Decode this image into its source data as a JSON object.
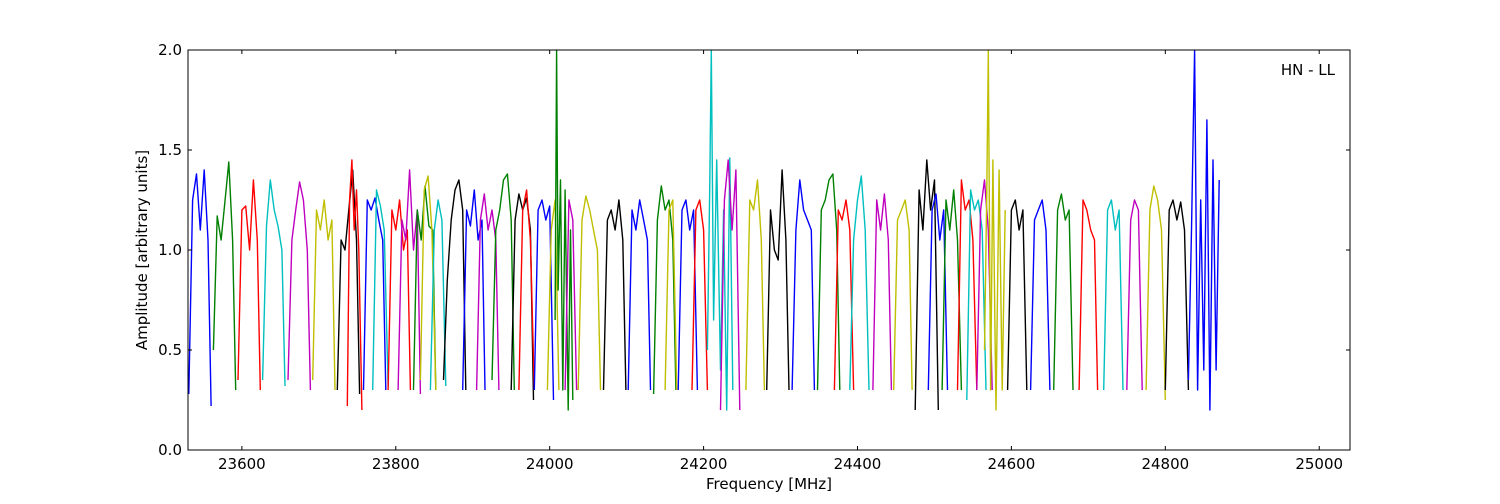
{
  "chart_data": {
    "type": "line",
    "title": "",
    "annotation": "HN - LL",
    "xlabel": "Frequency [MHz]",
    "ylabel": "Amplitude [arbitrary units]",
    "xlim": [
      23530,
      25040
    ],
    "ylim": [
      0.0,
      2.0
    ],
    "xticks": [
      23600,
      23800,
      24000,
      24200,
      24400,
      24600,
      24800,
      25000
    ],
    "xtick_labels": [
      "23600",
      "23800",
      "24000",
      "24200",
      "24400",
      "24600",
      "24800",
      "25000"
    ],
    "yticks": [
      0.0,
      0.5,
      1.0,
      1.5,
      2.0
    ],
    "ytick_labels": [
      "0.0",
      "0.5",
      "1.0",
      "1.5",
      "2.0"
    ],
    "grid": false,
    "color_cycle": [
      "#0000ff",
      "#008000",
      "#ff0000",
      "#00bfbf",
      "#bf00bf",
      "#bfbf00",
      "#000000"
    ],
    "series": [
      {
        "color": "#0000ff",
        "x": [
          23531,
          23536,
          23541,
          23546,
          23551,
          23556,
          23560
        ],
        "y": [
          0.28,
          1.25,
          1.38,
          1.1,
          1.4,
          1.05,
          0.22
        ]
      },
      {
        "color": "#008000",
        "x": [
          23563,
          23568,
          23573,
          23578,
          23583,
          23588,
          23592
        ],
        "y": [
          0.5,
          1.17,
          1.05,
          1.24,
          1.44,
          1.05,
          0.3
        ]
      },
      {
        "color": "#ff0000",
        "x": [
          23595,
          23600,
          23605,
          23610,
          23615,
          23620,
          23624
        ],
        "y": [
          0.35,
          1.2,
          1.22,
          1.0,
          1.35,
          1.05,
          0.3
        ]
      },
      {
        "color": "#00bfbf",
        "x": [
          23627,
          23632,
          23637,
          23642,
          23647,
          23652,
          23656
        ],
        "y": [
          0.35,
          1.12,
          1.35,
          1.2,
          1.12,
          1.0,
          0.32
        ]
      },
      {
        "color": "#bf00bf",
        "x": [
          23660,
          23665,
          23670,
          23675,
          23680,
          23685,
          23689
        ],
        "y": [
          0.35,
          1.05,
          1.2,
          1.34,
          1.25,
          1.0,
          0.3
        ]
      },
      {
        "color": "#bfbf00",
        "x": [
          23692,
          23697,
          23702,
          23707,
          23712,
          23717,
          23721
        ],
        "y": [
          0.35,
          1.2,
          1.1,
          1.25,
          1.05,
          1.15,
          0.3
        ]
      },
      {
        "color": "#000000",
        "x": [
          23724,
          23729,
          23734,
          23739,
          23744,
          23749,
          23753
        ],
        "y": [
          0.3,
          1.05,
          1.0,
          1.2,
          1.4,
          1.05,
          0.28
        ]
      },
      {
        "color": "#ff0000",
        "x": [
          23737,
          23740,
          23743,
          23746,
          23749,
          23752,
          23756
        ],
        "y": [
          0.22,
          1.25,
          1.45,
          1.1,
          1.3,
          1.0,
          0.2
        ]
      },
      {
        "color": "#0000ff",
        "x": [
          23758,
          23763,
          23768,
          23773,
          23778,
          23783,
          23787
        ],
        "y": [
          0.3,
          1.25,
          1.2,
          1.26,
          1.15,
          1.05,
          0.3
        ]
      },
      {
        "color": "#00bfbf",
        "x": [
          23770,
          23775,
          23780,
          23785,
          23790
        ],
        "y": [
          0.3,
          1.3,
          1.22,
          1.1,
          0.32
        ]
      },
      {
        "color": "#ff0000",
        "x": [
          23790,
          23795,
          23800,
          23805,
          23810,
          23815,
          23819
        ],
        "y": [
          0.3,
          1.2,
          1.1,
          1.25,
          1.0,
          1.1,
          0.3
        ]
      },
      {
        "color": "#bf00bf",
        "x": [
          23803,
          23808,
          23813,
          23818,
          23823,
          23828,
          23832
        ],
        "y": [
          0.3,
          1.15,
          1.05,
          1.4,
          1.0,
          1.2,
          0.28
        ]
      },
      {
        "color": "#008000",
        "x": [
          23823,
          23828,
          23833,
          23838,
          23843,
          23848,
          23852
        ],
        "y": [
          0.3,
          1.2,
          1.05,
          1.32,
          1.12,
          1.1,
          0.3
        ]
      },
      {
        "color": "#bfbf00",
        "x": [
          23832,
          23837,
          23842,
          23847,
          23852
        ],
        "y": [
          0.35,
          1.3,
          1.37,
          1.1,
          0.3
        ]
      },
      {
        "color": "#00bfbf",
        "x": [
          23845,
          23850,
          23855,
          23860,
          23865
        ],
        "y": [
          0.3,
          1.1,
          1.25,
          1.15,
          0.32
        ]
      },
      {
        "color": "#000000",
        "x": [
          23862,
          23867,
          23872,
          23877,
          23882,
          23887,
          23891
        ],
        "y": [
          0.35,
          0.85,
          1.15,
          1.3,
          1.35,
          1.2,
          0.3
        ]
      },
      {
        "color": "#0000ff",
        "x": [
          23887,
          23892,
          23897,
          23902,
          23907,
          23912,
          23916
        ],
        "y": [
          0.3,
          1.2,
          1.12,
          1.3,
          1.05,
          1.15,
          0.3
        ]
      },
      {
        "color": "#bf00bf",
        "x": [
          23905,
          23910,
          23915,
          23920,
          23925,
          23930,
          23934
        ],
        "y": [
          0.3,
          1.15,
          1.28,
          1.1,
          1.2,
          1.05,
          0.3
        ]
      },
      {
        "color": "#008000",
        "x": [
          23925,
          23930,
          23935,
          23940,
          23945,
          23950,
          23954
        ],
        "y": [
          0.35,
          1.1,
          1.2,
          1.35,
          1.38,
          1.15,
          0.3
        ]
      },
      {
        "color": "#000000",
        "x": [
          23950,
          23955,
          23960,
          23965,
          23970,
          23975,
          23979
        ],
        "y": [
          0.3,
          1.15,
          1.28,
          1.2,
          1.26,
          1.1,
          0.25
        ]
      },
      {
        "color": "#ff0000",
        "x": [
          23960,
          23965,
          23970,
          23975,
          23980
        ],
        "y": [
          0.3,
          1.2,
          1.3,
          1.05,
          0.3
        ]
      },
      {
        "color": "#0000ff",
        "x": [
          23980,
          23985,
          23990,
          23995,
          24000,
          24005
        ],
        "y": [
          0.3,
          1.2,
          1.25,
          1.15,
          1.22,
          0.25
        ]
      },
      {
        "color": "#bfbf00",
        "x": [
          23997,
          24002,
          24007,
          24012
        ],
        "y": [
          0.3,
          1.1,
          1.25,
          0.3
        ]
      },
      {
        "color": "#008000",
        "x": [
          24007,
          24009,
          24011,
          24014,
          24017,
          24020,
          24024,
          24027,
          24030
        ],
        "y": [
          0.65,
          2.0,
          0.8,
          1.35,
          0.3,
          1.3,
          0.2,
          1.1,
          0.25
        ]
      },
      {
        "color": "#bf00bf",
        "x": [
          24020,
          24025,
          24030,
          24035
        ],
        "y": [
          0.3,
          1.25,
          1.15,
          0.3
        ]
      },
      {
        "color": "#bfbf00",
        "x": [
          24037,
          24042,
          24047,
          24052,
          24057,
          24062,
          24066
        ],
        "y": [
          0.3,
          1.15,
          1.27,
          1.2,
          1.1,
          1.0,
          0.3
        ]
      },
      {
        "color": "#000000",
        "x": [
          24070,
          24075,
          24080,
          24085,
          24090,
          24095,
          24099
        ],
        "y": [
          0.3,
          1.15,
          1.2,
          1.1,
          1.25,
          1.05,
          0.3
        ]
      },
      {
        "color": "#0000ff",
        "x": [
          24102,
          24107,
          24112,
          24117,
          24122,
          24127,
          24131
        ],
        "y": [
          0.3,
          1.2,
          1.1,
          1.25,
          1.15,
          1.05,
          0.3
        ]
      },
      {
        "color": "#008000",
        "x": [
          24135,
          24140,
          24145,
          24150,
          24155,
          24160,
          24164
        ],
        "y": [
          0.28,
          1.15,
          1.32,
          1.2,
          1.25,
          1.05,
          0.3
        ]
      },
      {
        "color": "#bfbf00",
        "x": [
          24150,
          24155,
          24160,
          24165
        ],
        "y": [
          0.3,
          1.2,
          1.25,
          0.3
        ]
      },
      {
        "color": "#0000ff",
        "x": [
          24167,
          24172,
          24177,
          24182,
          24187,
          24192
        ],
        "y": [
          0.3,
          1.2,
          1.25,
          1.1,
          1.2,
          0.3
        ]
      },
      {
        "color": "#ff0000",
        "x": [
          24185,
          24190,
          24195,
          24200,
          24205
        ],
        "y": [
          0.3,
          1.2,
          1.25,
          1.1,
          0.3
        ]
      },
      {
        "color": "#00bfbf",
        "x": [
          24205,
          24208,
          24210,
          24213,
          24217,
          24222,
          24226,
          24230,
          24234,
          24238
        ],
        "y": [
          0.5,
          1.3,
          2.0,
          0.65,
          1.45,
          0.4,
          1.2,
          0.2,
          1.46,
          0.3
        ]
      },
      {
        "color": "#bf00bf",
        "x": [
          24222,
          24227,
          24232,
          24237,
          24242,
          24247
        ],
        "y": [
          0.2,
          1.25,
          1.45,
          1.1,
          1.4,
          0.2
        ]
      },
      {
        "color": "#bfbf00",
        "x": [
          24255,
          24260,
          24265,
          24270,
          24275,
          24279
        ],
        "y": [
          0.3,
          1.25,
          1.2,
          1.35,
          1.05,
          0.3
        ]
      },
      {
        "color": "#000000",
        "x": [
          24282,
          24287,
          24292,
          24297,
          24302,
          24307,
          24311
        ],
        "y": [
          0.3,
          1.2,
          1.0,
          0.95,
          1.4,
          1.05,
          0.3
        ]
      },
      {
        "color": "#0000ff",
        "x": [
          24315,
          24320,
          24325,
          24330,
          24335,
          24340,
          24344
        ],
        "y": [
          0.3,
          1.1,
          1.35,
          1.2,
          1.15,
          1.1,
          0.3
        ]
      },
      {
        "color": "#008000",
        "x": [
          24348,
          24353,
          24358,
          24363,
          24368,
          24373,
          24377
        ],
        "y": [
          0.3,
          1.2,
          1.25,
          1.35,
          1.38,
          1.1,
          0.3
        ]
      },
      {
        "color": "#ff0000",
        "x": [
          24370,
          24375,
          24380,
          24385,
          24390,
          24395
        ],
        "y": [
          0.3,
          1.2,
          1.15,
          1.25,
          1.1,
          0.3
        ]
      },
      {
        "color": "#00bfbf",
        "x": [
          24390,
          24395,
          24400,
          24405,
          24410,
          24415
        ],
        "y": [
          0.3,
          1.05,
          1.25,
          1.37,
          1.1,
          0.3
        ]
      },
      {
        "color": "#bf00bf",
        "x": [
          24420,
          24425,
          24430,
          24435,
          24440,
          24444
        ],
        "y": [
          0.3,
          1.25,
          1.1,
          1.28,
          1.05,
          0.3
        ]
      },
      {
        "color": "#bfbf00",
        "x": [
          24447,
          24452,
          24457,
          24462,
          24467,
          24471
        ],
        "y": [
          0.3,
          1.15,
          1.2,
          1.25,
          1.1,
          0.3
        ]
      },
      {
        "color": "#000000",
        "x": [
          24475,
          24480,
          24485,
          24490,
          24495,
          24500,
          24505
        ],
        "y": [
          0.2,
          1.3,
          1.1,
          1.45,
          1.2,
          1.35,
          0.2
        ]
      },
      {
        "color": "#0000ff",
        "x": [
          24492,
          24497,
          24502,
          24507,
          24512,
          24517
        ],
        "y": [
          0.3,
          1.2,
          1.28,
          1.05,
          1.2,
          0.3
        ]
      },
      {
        "color": "#008000",
        "x": [
          24510,
          24515,
          24520,
          24525,
          24530,
          24535
        ],
        "y": [
          0.3,
          1.25,
          1.1,
          1.3,
          1.05,
          0.3
        ]
      },
      {
        "color": "#ff0000",
        "x": [
          24530,
          24535,
          24540,
          24545,
          24550,
          24555
        ],
        "y": [
          0.3,
          1.35,
          1.2,
          1.25,
          1.05,
          0.3
        ]
      },
      {
        "color": "#00bfbf",
        "x": [
          24542,
          24547,
          24552,
          24557,
          24562,
          24567
        ],
        "y": [
          0.25,
          1.3,
          1.2,
          1.25,
          1.1,
          0.3
        ]
      },
      {
        "color": "#bf00bf",
        "x": [
          24555,
          24560,
          24565,
          24570,
          24575
        ],
        "y": [
          0.3,
          1.2,
          1.35,
          1.1,
          0.3
        ]
      },
      {
        "color": "#bfbf00",
        "x": [
          24565,
          24568,
          24570,
          24573,
          24576,
          24580,
          24584,
          24588,
          24592
        ],
        "y": [
          0.5,
          1.3,
          2.0,
          0.3,
          1.45,
          0.2,
          1.4,
          0.3,
          1.2
        ]
      },
      {
        "color": "#000000",
        "x": [
          24595,
          24600,
          24605,
          24610,
          24615,
          24620
        ],
        "y": [
          0.3,
          1.2,
          1.25,
          1.1,
          1.2,
          0.3
        ]
      },
      {
        "color": "#0000ff",
        "x": [
          24625,
          24630,
          24635,
          24640,
          24645,
          24650
        ],
        "y": [
          0.3,
          1.15,
          1.2,
          1.25,
          1.1,
          0.3
        ]
      },
      {
        "color": "#008000",
        "x": [
          24655,
          24660,
          24665,
          24670,
          24675,
          24680
        ],
        "y": [
          0.3,
          1.2,
          1.28,
          1.15,
          1.2,
          0.3
        ]
      },
      {
        "color": "#ff0000",
        "x": [
          24688,
          24693,
          24698,
          24703,
          24708,
          24712
        ],
        "y": [
          0.3,
          1.25,
          1.2,
          1.1,
          1.05,
          0.3
        ]
      },
      {
        "color": "#00bfbf",
        "x": [
          24720,
          24725,
          24730,
          24735,
          24740,
          24745
        ],
        "y": [
          0.3,
          1.2,
          1.25,
          1.1,
          1.2,
          0.3
        ]
      },
      {
        "color": "#bf00bf",
        "x": [
          24750,
          24755,
          24760,
          24765,
          24770
        ],
        "y": [
          0.3,
          1.15,
          1.25,
          1.2,
          0.3
        ]
      },
      {
        "color": "#bfbf00",
        "x": [
          24775,
          24780,
          24785,
          24790,
          24795,
          24800
        ],
        "y": [
          0.3,
          1.2,
          1.32,
          1.25,
          1.1,
          0.25
        ]
      },
      {
        "color": "#000000",
        "x": [
          24800,
          24805,
          24810,
          24815,
          24820,
          24825,
          24830
        ],
        "y": [
          0.3,
          1.2,
          1.25,
          1.15,
          1.24,
          1.1,
          0.3
        ]
      },
      {
        "color": "#0000ff",
        "x": [
          24830,
          24834,
          24838,
          24842,
          24846,
          24850,
          24854,
          24858,
          24862,
          24866,
          24870
        ],
        "y": [
          0.35,
          1.1,
          2.0,
          0.3,
          1.25,
          0.4,
          1.65,
          0.2,
          1.45,
          0.4,
          1.35
        ]
      }
    ]
  }
}
